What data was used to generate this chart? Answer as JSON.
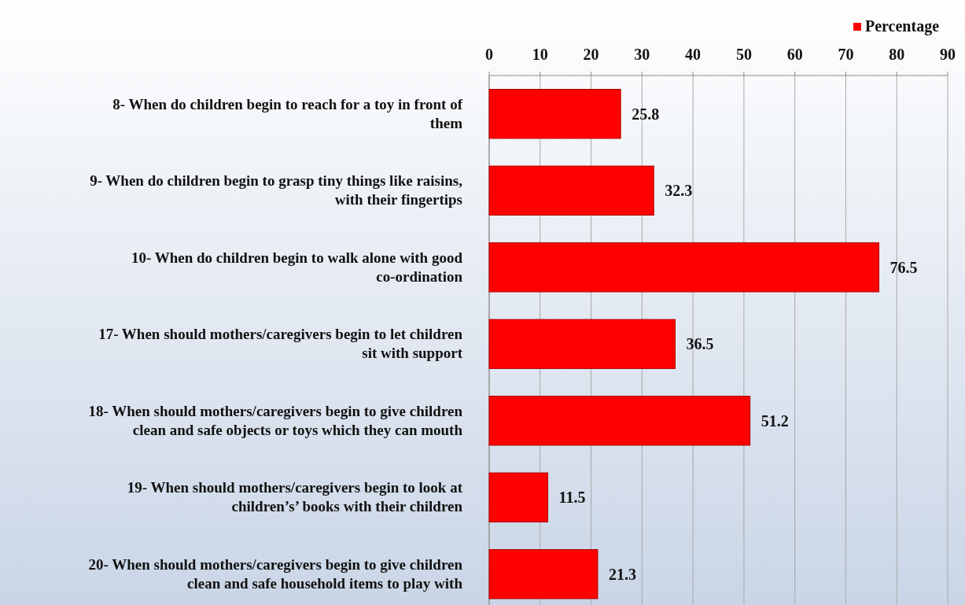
{
  "chart_data": {
    "type": "bar",
    "orientation": "horizontal",
    "categories": [
      "8- When do children begin to reach for a toy in front of them",
      "9- When do children begin to grasp tiny things like raisins, with their fingertips",
      "10- When do children begin to walk alone with good co-ordination",
      "17- When should mothers/caregivers begin to let children sit with support",
      "18- When should mothers/caregivers begin to give children clean and safe objects or toys which they can mouth",
      "19- When should mothers/caregivers begin to look at children’s’ books with their children",
      "20- When should mothers/caregivers begin to give children clean and safe household items to play with"
    ],
    "series": [
      {
        "name": "Percentage",
        "color": "#ff0000",
        "values": [
          25.8,
          32.3,
          76.5,
          36.5,
          51.2,
          11.5,
          21.3
        ]
      }
    ],
    "xlim": [
      0,
      90
    ],
    "xticks": [
      0,
      10,
      20,
      30,
      40,
      50,
      60,
      70,
      80,
      90
    ],
    "grid": "x",
    "legend": "top right",
    "data_labels": true
  }
}
